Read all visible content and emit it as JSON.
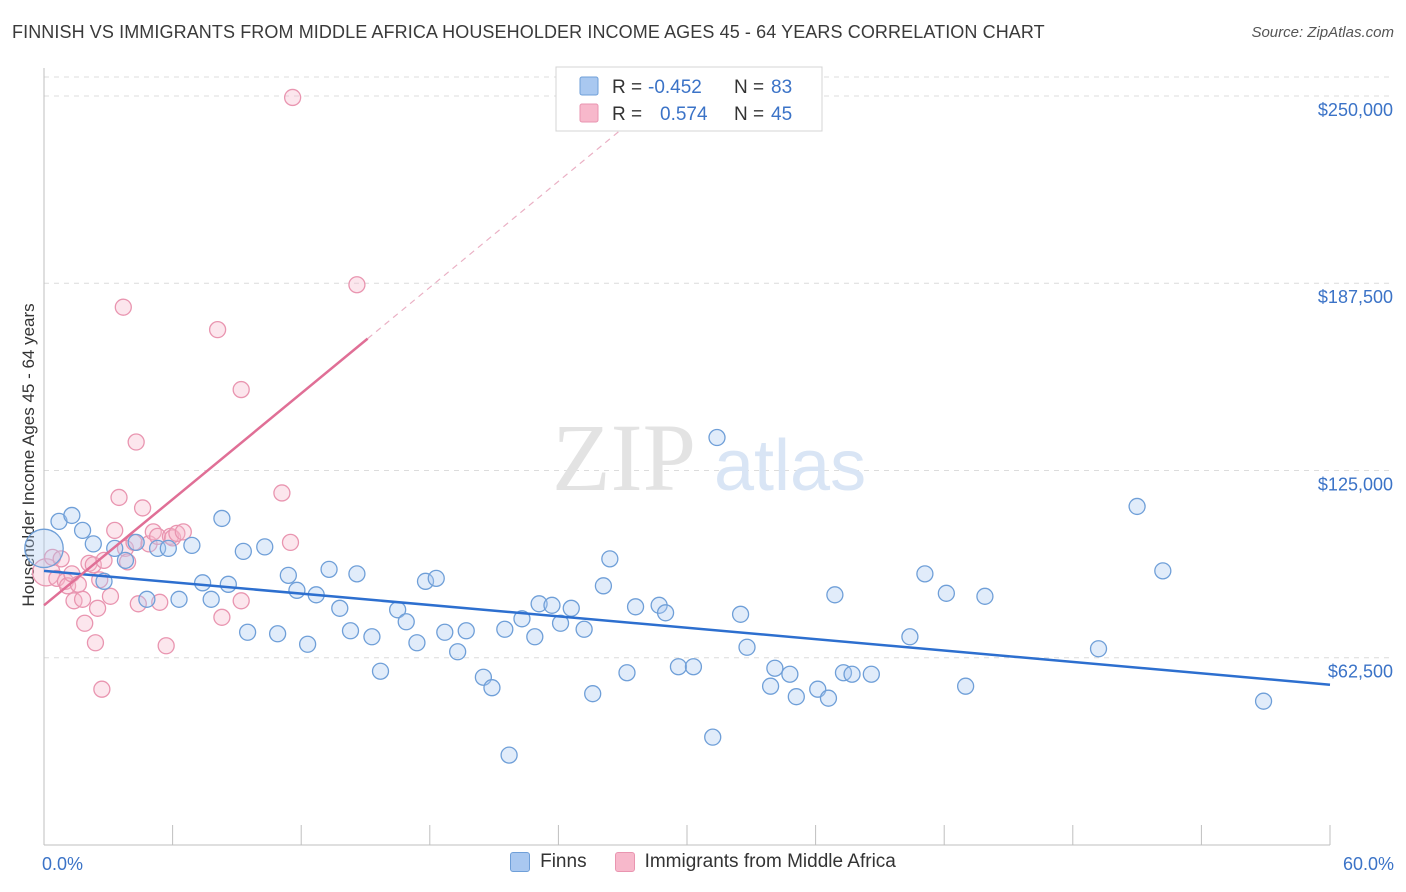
{
  "header": {
    "title": "FINNISH VS IMMIGRANTS FROM MIDDLE AFRICA HOUSEHOLDER INCOME AGES 45 - 64 YEARS CORRELATION CHART",
    "source": "Source: ZipAtlas.com"
  },
  "watermark": {
    "zip": "ZIP",
    "atlas": "atlas"
  },
  "legend": {
    "rows": [
      {
        "r_label": "R =",
        "r_value": "-0.452",
        "n_label": "N =",
        "n_value": "83",
        "color": "#a9c8f0"
      },
      {
        "r_label": "R =",
        "r_value": "0.574",
        "n_label": "N =",
        "n_value": "45",
        "color": "#f7b8cb"
      }
    ]
  },
  "bottom_legend": {
    "finns": "Finns",
    "immigrants": "Immigrants from Middle Africa"
  },
  "colors": {
    "finns_fill": "#a9c8f0",
    "finns_stroke": "#6f9fd8",
    "finns_line": "#2d6fcf",
    "imm_fill": "#f7b8cb",
    "imm_stroke": "#e995b0",
    "imm_line": "#e06f96",
    "grid": "#dcdcdc",
    "axis_label": "#3b73c7"
  },
  "chart_data": {
    "type": "scatter",
    "title": "FINNISH VS IMMIGRANTS FROM MIDDLE AFRICA HOUSEHOLDER INCOME AGES 45 - 64 YEARS CORRELATION CHART",
    "xlabel": "",
    "ylabel": "Householder Income Ages 45 - 64 years",
    "xlim": [
      0,
      60
    ],
    "ylim": [
      0,
      262000
    ],
    "x_tick_labels": [
      "0.0%",
      "60.0%"
    ],
    "y_ticks": [
      62500,
      125000,
      187500,
      250000
    ],
    "y_tick_labels": [
      "$62,500",
      "$125,000",
      "$187,500",
      "$250,000"
    ],
    "series": [
      {
        "name": "Finns",
        "r": -0.452,
        "n": 83,
        "trend": {
          "x": [
            0,
            60
          ],
          "y": [
            91500,
            53500
          ]
        },
        "points": [
          [
            0.0,
            99000,
            2.4
          ],
          [
            0.7,
            108000,
            1
          ],
          [
            1.3,
            110000,
            1
          ],
          [
            1.8,
            105000,
            1
          ],
          [
            2.3,
            100500,
            1
          ],
          [
            2.8,
            88000,
            1
          ],
          [
            3.3,
            99000,
            1
          ],
          [
            3.8,
            95000,
            1
          ],
          [
            4.3,
            101000,
            1
          ],
          [
            4.8,
            82000,
            1
          ],
          [
            5.3,
            99000,
            1
          ],
          [
            5.8,
            99000,
            1
          ],
          [
            6.3,
            82000,
            1
          ],
          [
            6.9,
            100000,
            1
          ],
          [
            7.4,
            87500,
            1
          ],
          [
            7.8,
            82000,
            1
          ],
          [
            8.3,
            109000,
            1
          ],
          [
            8.6,
            87000,
            1
          ],
          [
            9.3,
            98000,
            1
          ],
          [
            9.5,
            71000,
            1
          ],
          [
            10.3,
            99500,
            1
          ],
          [
            10.9,
            70500,
            1
          ],
          [
            11.4,
            90000,
            1
          ],
          [
            11.8,
            85000,
            1
          ],
          [
            12.3,
            67000,
            1
          ],
          [
            12.7,
            83500,
            1
          ],
          [
            13.3,
            92000,
            1
          ],
          [
            13.8,
            79000,
            1
          ],
          [
            14.3,
            71500,
            1
          ],
          [
            14.6,
            90500,
            1
          ],
          [
            15.3,
            69500,
            1
          ],
          [
            15.7,
            58000,
            1
          ],
          [
            16.5,
            78500,
            1
          ],
          [
            16.9,
            74500,
            1
          ],
          [
            17.4,
            67500,
            1
          ],
          [
            17.8,
            88000,
            1
          ],
          [
            18.3,
            89000,
            1
          ],
          [
            18.7,
            71000,
            1
          ],
          [
            19.3,
            64500,
            1
          ],
          [
            19.7,
            71500,
            1
          ],
          [
            20.5,
            56000,
            1
          ],
          [
            20.9,
            52500,
            1
          ],
          [
            21.5,
            72000,
            1
          ],
          [
            21.7,
            30000,
            1
          ],
          [
            22.3,
            75500,
            1
          ],
          [
            22.9,
            69500,
            1
          ],
          [
            23.1,
            80500,
            1
          ],
          [
            23.7,
            80000,
            1
          ],
          [
            24.1,
            74000,
            1
          ],
          [
            24.6,
            79000,
            1
          ],
          [
            25.2,
            72000,
            1
          ],
          [
            25.6,
            50500,
            1
          ],
          [
            26.1,
            86500,
            1
          ],
          [
            26.4,
            95500,
            1
          ],
          [
            27.2,
            57500,
            1
          ],
          [
            27.6,
            79500,
            1
          ],
          [
            28.7,
            80000,
            1
          ],
          [
            29.0,
            77500,
            1
          ],
          [
            29.6,
            59500,
            1
          ],
          [
            30.3,
            59500,
            1
          ],
          [
            31.2,
            36000,
            1
          ],
          [
            31.4,
            136000,
            1
          ],
          [
            32.5,
            77000,
            1
          ],
          [
            32.8,
            66000,
            1
          ],
          [
            33.9,
            53000,
            1
          ],
          [
            34.1,
            59000,
            1
          ],
          [
            34.8,
            57000,
            1
          ],
          [
            35.1,
            49500,
            1
          ],
          [
            36.1,
            52000,
            1
          ],
          [
            36.6,
            49000,
            1
          ],
          [
            36.9,
            83500,
            1
          ],
          [
            37.3,
            57500,
            1
          ],
          [
            37.7,
            57000,
            1
          ],
          [
            38.6,
            57000,
            1
          ],
          [
            40.4,
            69500,
            1
          ],
          [
            41.1,
            90500,
            1
          ],
          [
            42.1,
            84000,
            1
          ],
          [
            43.0,
            53000,
            1
          ],
          [
            43.9,
            83000,
            1
          ],
          [
            49.2,
            65500,
            1
          ],
          [
            51.0,
            113000,
            1
          ],
          [
            52.2,
            91500,
            1
          ],
          [
            56.9,
            48000,
            1
          ]
        ]
      },
      {
        "name": "Immigrants from Middle Africa",
        "r": 0.574,
        "n": 45,
        "trend": {
          "x": [
            0,
            15.1
          ],
          "y": [
            80000,
            169000
          ]
        },
        "trend_ext": {
          "x": [
            15.1,
            29
          ],
          "y": [
            169000,
            251000
          ]
        },
        "points": [
          [
            0.1,
            91000,
            1.7
          ],
          [
            0.4,
            96000,
            1
          ],
          [
            0.6,
            89000,
            1
          ],
          [
            0.8,
            95500,
            1
          ],
          [
            1.0,
            88000,
            1
          ],
          [
            1.1,
            86500,
            1
          ],
          [
            1.3,
            90500,
            1
          ],
          [
            1.4,
            81500,
            1
          ],
          [
            1.6,
            87000,
            1
          ],
          [
            1.8,
            82000,
            1
          ],
          [
            1.9,
            74000,
            1
          ],
          [
            2.1,
            94000,
            1
          ],
          [
            2.3,
            93500,
            1
          ],
          [
            2.4,
            67500,
            1
          ],
          [
            2.5,
            79000,
            1
          ],
          [
            2.6,
            88500,
            1
          ],
          [
            2.7,
            52000,
            1
          ],
          [
            2.8,
            95000,
            1
          ],
          [
            3.1,
            83000,
            1
          ],
          [
            3.3,
            105000,
            1
          ],
          [
            3.5,
            116000,
            1
          ],
          [
            3.7,
            179500,
            1
          ],
          [
            3.8,
            99000,
            1
          ],
          [
            3.9,
            94500,
            1
          ],
          [
            4.2,
            101000,
            1
          ],
          [
            4.3,
            134500,
            1
          ],
          [
            4.4,
            80500,
            1
          ],
          [
            4.6,
            112500,
            1
          ],
          [
            4.9,
            100500,
            1
          ],
          [
            5.1,
            104500,
            1
          ],
          [
            5.3,
            103000,
            1
          ],
          [
            5.4,
            81000,
            1
          ],
          [
            5.7,
            66500,
            1
          ],
          [
            5.9,
            103000,
            1
          ],
          [
            6.0,
            102500,
            1
          ],
          [
            6.2,
            104000,
            1
          ],
          [
            6.5,
            104500,
            1
          ],
          [
            8.1,
            172000,
            1
          ],
          [
            8.3,
            76000,
            1
          ],
          [
            9.2,
            152000,
            1
          ],
          [
            9.2,
            81500,
            1
          ],
          [
            11.1,
            117500,
            1
          ],
          [
            11.5,
            101000,
            1
          ],
          [
            14.6,
            187000,
            1
          ],
          [
            11.6,
            249500,
            1
          ]
        ]
      }
    ]
  }
}
